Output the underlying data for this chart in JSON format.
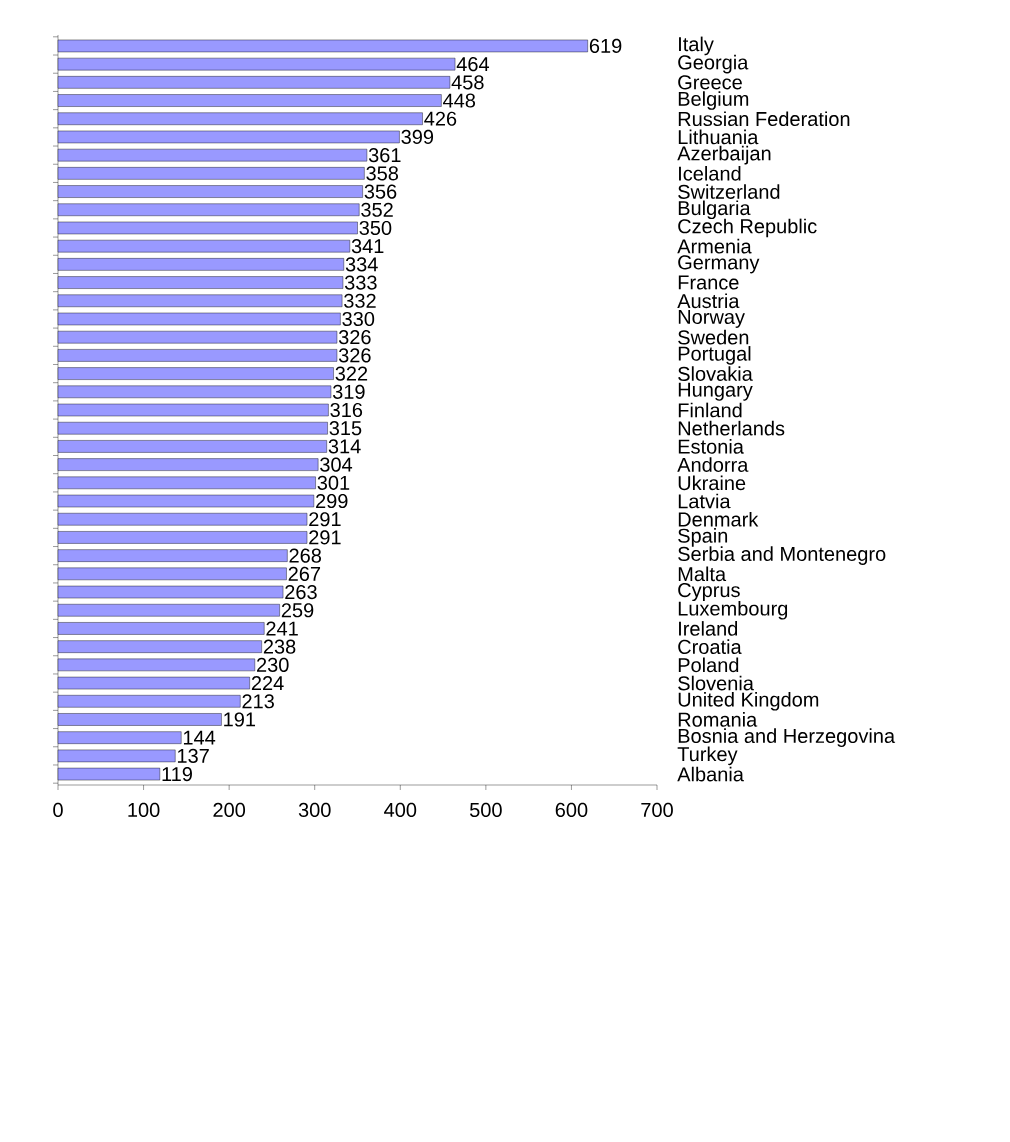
{
  "chart_data": {
    "type": "bar",
    "orientation": "horizontal",
    "categories": [
      "Italy",
      "Georgia",
      "Greece",
      "Belgium",
      "Russian Federation",
      "Lithuania",
      "Azerbaijan",
      "Iceland",
      "Switzerland",
      "Bulgaria",
      "Czech Republic",
      "Armenia",
      "Germany",
      "France",
      "Austria",
      "Norway",
      "Sweden",
      "Portugal",
      "Slovakia",
      "Hungary",
      "Finland",
      "Netherlands",
      "Estonia",
      "Andorra",
      "Ukraine",
      "Latvia",
      "Denmark",
      "Spain",
      "Serbia and Montenegro",
      "Malta",
      "Cyprus",
      "Luxembourg",
      "Ireland",
      "Croatia",
      "Poland",
      "Slovenia",
      "United Kingdom",
      "Romania",
      "Bosnia and Herzegovina",
      "Turkey",
      "Albania"
    ],
    "values": [
      619,
      464,
      458,
      448,
      426,
      399,
      361,
      358,
      356,
      352,
      350,
      341,
      334,
      333,
      332,
      330,
      326,
      326,
      322,
      319,
      316,
      315,
      314,
      304,
      301,
      299,
      291,
      291,
      268,
      267,
      263,
      259,
      241,
      238,
      230,
      224,
      213,
      191,
      144,
      137,
      119
    ],
    "color": "#9999ff",
    "xlim": [
      0,
      700
    ],
    "xticks": [
      0,
      100,
      200,
      300,
      400,
      500,
      600,
      700
    ],
    "data_labels": true
  }
}
